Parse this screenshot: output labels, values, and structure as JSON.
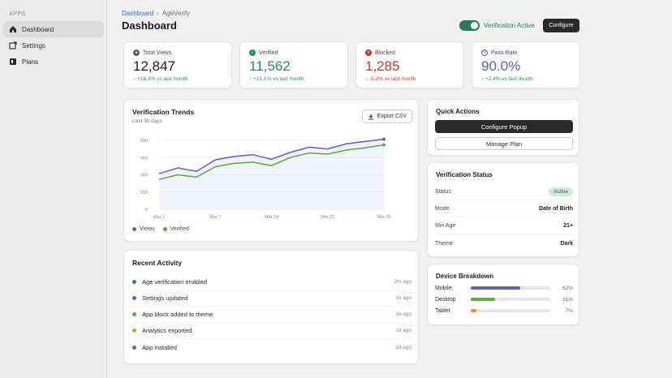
{
  "sidebar": {
    "heading": "APPS",
    "items": [
      {
        "label": "Dashboard",
        "icon": "home-icon"
      },
      {
        "label": "Settings",
        "icon": "settings-icon"
      },
      {
        "label": "Plans",
        "icon": "plans-icon"
      }
    ]
  },
  "header": {
    "breadcrumb_root": "Dashboard",
    "breadcrumb_sep": "›",
    "breadcrumb_current": "AgeVerify",
    "title": "Dashboard",
    "status_label": "Verification Active",
    "configure_label": "Configure"
  },
  "stats": [
    {
      "label": "Total Views",
      "value": "12,847",
      "change": "↑ +18.3% vs last month",
      "trend": "up",
      "color": "#5b5b6b",
      "icon": "eye-icon"
    },
    {
      "label": "Verified",
      "value": "11,562",
      "change": "↑ +21.1% vs last month",
      "trend": "up",
      "color": "#2e8b57",
      "icon": "check-icon"
    },
    {
      "label": "Blocked",
      "value": "1,285",
      "change": "↓ -5.2% vs last month",
      "trend": "down",
      "color": "#c0392b",
      "icon": "blocked-icon"
    },
    {
      "label": "Pass Rate",
      "value": "90.0%",
      "change": "↑ +2.4% vs last month",
      "trend": "up",
      "color": "#5a62b5",
      "icon": "percent-icon"
    }
  ],
  "trends": {
    "title": "Verification Trends",
    "subtitle": "Last 30 days",
    "export_label": "Export CSV",
    "legend_views": "Views",
    "legend_verified": "Verified",
    "colors": {
      "views": "#5b5fc7",
      "verified": "#5aaa4a"
    }
  },
  "chart_data": {
    "type": "line",
    "x_ticks": [
      "Mar 1",
      "Mar 7",
      "Mar 14",
      "Mar 21",
      "Mar 25"
    ],
    "y_ticks": [
      "600",
      "450",
      "300",
      "150",
      "0"
    ],
    "ylim": [
      0,
      600
    ],
    "series": [
      {
        "name": "Views",
        "values": [
          310,
          360,
          330,
          430,
          460,
          475,
          435,
          495,
          540,
          525,
          570,
          590,
          610
        ]
      },
      {
        "name": "Verified",
        "values": [
          260,
          300,
          280,
          370,
          400,
          410,
          380,
          450,
          490,
          480,
          515,
          535,
          560
        ]
      }
    ]
  },
  "activity": {
    "title": "Recent Activity",
    "items": [
      {
        "text": "Age verification enabled",
        "time": "2m ago",
        "color": "#2e8b57"
      },
      {
        "text": "Settings updated",
        "time": "1h ago",
        "color": "#5b5fc7"
      },
      {
        "text": "App block added to theme",
        "time": "3h ago",
        "color": "#5aaa4a"
      },
      {
        "text": "Analytics exported",
        "time": "1d ago",
        "color": "#e69138"
      },
      {
        "text": "App installed",
        "time": "3d ago",
        "color": "#5b5fc7"
      }
    ]
  },
  "quick_actions": {
    "title": "Quick Actions",
    "primary": "Configure Popup",
    "secondary": "Manage Plan"
  },
  "verification_status": {
    "title": "Verification Status",
    "rows": [
      {
        "label": "Status",
        "value": "Active"
      },
      {
        "label": "Mode",
        "value": "Date of Birth"
      },
      {
        "label": "Min Age",
        "value": "21+"
      },
      {
        "label": "Theme",
        "value": "Dark"
      }
    ]
  },
  "devices": {
    "title": "Device Breakdown",
    "items": [
      {
        "name": "Mobile",
        "pct": "62%",
        "fraction": 0.62,
        "color": "#5b5fc7"
      },
      {
        "name": "Desktop",
        "pct": "31%",
        "fraction": 0.31,
        "color": "#5aaa4a"
      },
      {
        "name": "Tablet",
        "pct": "7%",
        "fraction": 0.07,
        "color": "#e69138"
      }
    ]
  }
}
